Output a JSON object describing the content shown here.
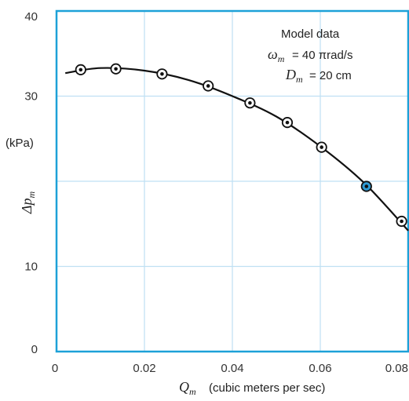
{
  "chart_data": {
    "type": "scatter",
    "xlim": [
      0,
      0.08
    ],
    "ylim": [
      0,
      40
    ],
    "xticks": [
      "0",
      "0.02",
      "0.04",
      "0.06",
      "0.08"
    ],
    "yticks": [
      "0",
      "10",
      "30",
      "40"
    ],
    "grid": true,
    "xlabel": {
      "symbol": "Q",
      "subscript": "m",
      "text": "(cubic meters per sec)"
    },
    "ylabel": {
      "unit": "(kPa)",
      "symbol": "Δp",
      "subscript": "m"
    },
    "annotation": {
      "title": "Model data",
      "line1": {
        "symbol": "ω",
        "subscript": "m",
        "text": "= 40 πrad/s"
      },
      "line2": {
        "symbol": "D",
        "subscript": "m",
        "text": "=  20 cm"
      }
    },
    "series": [
      {
        "style": "circled-dot markers with fitted curve",
        "color": "#111111",
        "points": [
          [
            0.0055,
            33.1
          ],
          [
            0.0135,
            33.2
          ],
          [
            0.024,
            32.6
          ],
          [
            0.0345,
            31.2
          ],
          [
            0.044,
            29.2
          ],
          [
            0.0525,
            26.9
          ],
          [
            0.0603,
            24.0
          ],
          [
            0.0705,
            19.4
          ],
          [
            0.0785,
            15.3
          ]
        ],
        "highlight_index": 7,
        "highlight_color": "#2f9bd6",
        "curve": [
          [
            0.002,
            32.7
          ],
          [
            0.01,
            33.3
          ],
          [
            0.02,
            33.0
          ],
          [
            0.03,
            31.9
          ],
          [
            0.04,
            30.0
          ],
          [
            0.05,
            27.6
          ],
          [
            0.06,
            24.1
          ],
          [
            0.07,
            19.8
          ],
          [
            0.08,
            14.2
          ]
        ]
      }
    ],
    "colors": {
      "frame": "#1da1d8",
      "grid": "#bfe0f3",
      "curve": "#111111"
    }
  }
}
